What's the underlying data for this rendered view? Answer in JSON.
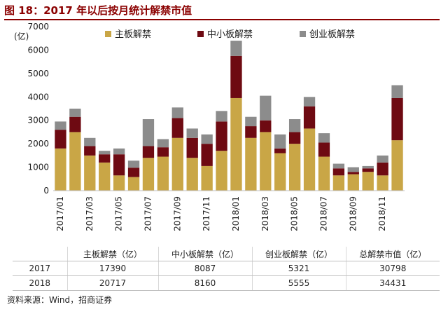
{
  "title": "图 18：2017 年以后按月统计解禁市值",
  "chart_data": {
    "type": "bar",
    "stacked": true,
    "ylabel": "(亿)",
    "ylim": [
      0,
      7000
    ],
    "yticks": [
      "0",
      "1000",
      "2000",
      "3000",
      "4000",
      "5000",
      "6000",
      "7000"
    ],
    "grid": false,
    "legend_position": "top",
    "categories": [
      "2017/01",
      "2017/02",
      "2017/03",
      "2017/04",
      "2017/05",
      "2017/06",
      "2017/07",
      "2017/08",
      "2017/09",
      "2017/10",
      "2017/11",
      "2017/12",
      "2018/01",
      "2018/02",
      "2018/03",
      "2018/04",
      "2018/05",
      "2018/06",
      "2018/07",
      "2018/08",
      "2018/09",
      "2018/10",
      "2018/11",
      "2018/12"
    ],
    "xtick_labels": [
      "2017/01",
      "",
      "2017/03",
      "",
      "2017/05",
      "",
      "2017/07",
      "",
      "2017/09",
      "",
      "2017/11",
      "",
      "2018/01",
      "",
      "2018/03",
      "",
      "2018/05",
      "",
      "2018/07",
      "",
      "2018/09",
      "",
      "2018/11",
      ""
    ],
    "series": [
      {
        "name": "主板解禁",
        "color": "#c9a646",
        "values": [
          1800,
          2500,
          1500,
          1200,
          650,
          580,
          1400,
          1450,
          2250,
          1400,
          1050,
          1700,
          3950,
          2250,
          2500,
          1600,
          2000,
          2650,
          1450,
          650,
          700,
          800,
          650,
          2150
        ]
      },
      {
        "name": "中小板解禁",
        "color": "#6e0a12",
        "values": [
          800,
          650,
          400,
          350,
          900,
          400,
          500,
          400,
          850,
          850,
          950,
          1250,
          1800,
          500,
          500,
          200,
          500,
          950,
          600,
          300,
          100,
          150,
          550,
          1800
        ]
      },
      {
        "name": "创业板解禁",
        "color": "#8c8c8c",
        "values": [
          350,
          350,
          350,
          150,
          250,
          300,
          1150,
          350,
          450,
          400,
          400,
          450,
          650,
          400,
          1050,
          600,
          550,
          400,
          400,
          200,
          200,
          100,
          300,
          550
        ]
      }
    ]
  },
  "table": {
    "headers": [
      "",
      "主板解禁（亿）",
      "中小板解禁（亿）",
      "创业板解禁（亿）",
      "总解禁市值（亿）"
    ],
    "rows": [
      [
        "2017",
        "17390",
        "8087",
        "5321",
        "30798"
      ],
      [
        "2018",
        "20717",
        "8160",
        "5555",
        "34431"
      ]
    ]
  },
  "source": "资料来源：Wind，招商证券"
}
